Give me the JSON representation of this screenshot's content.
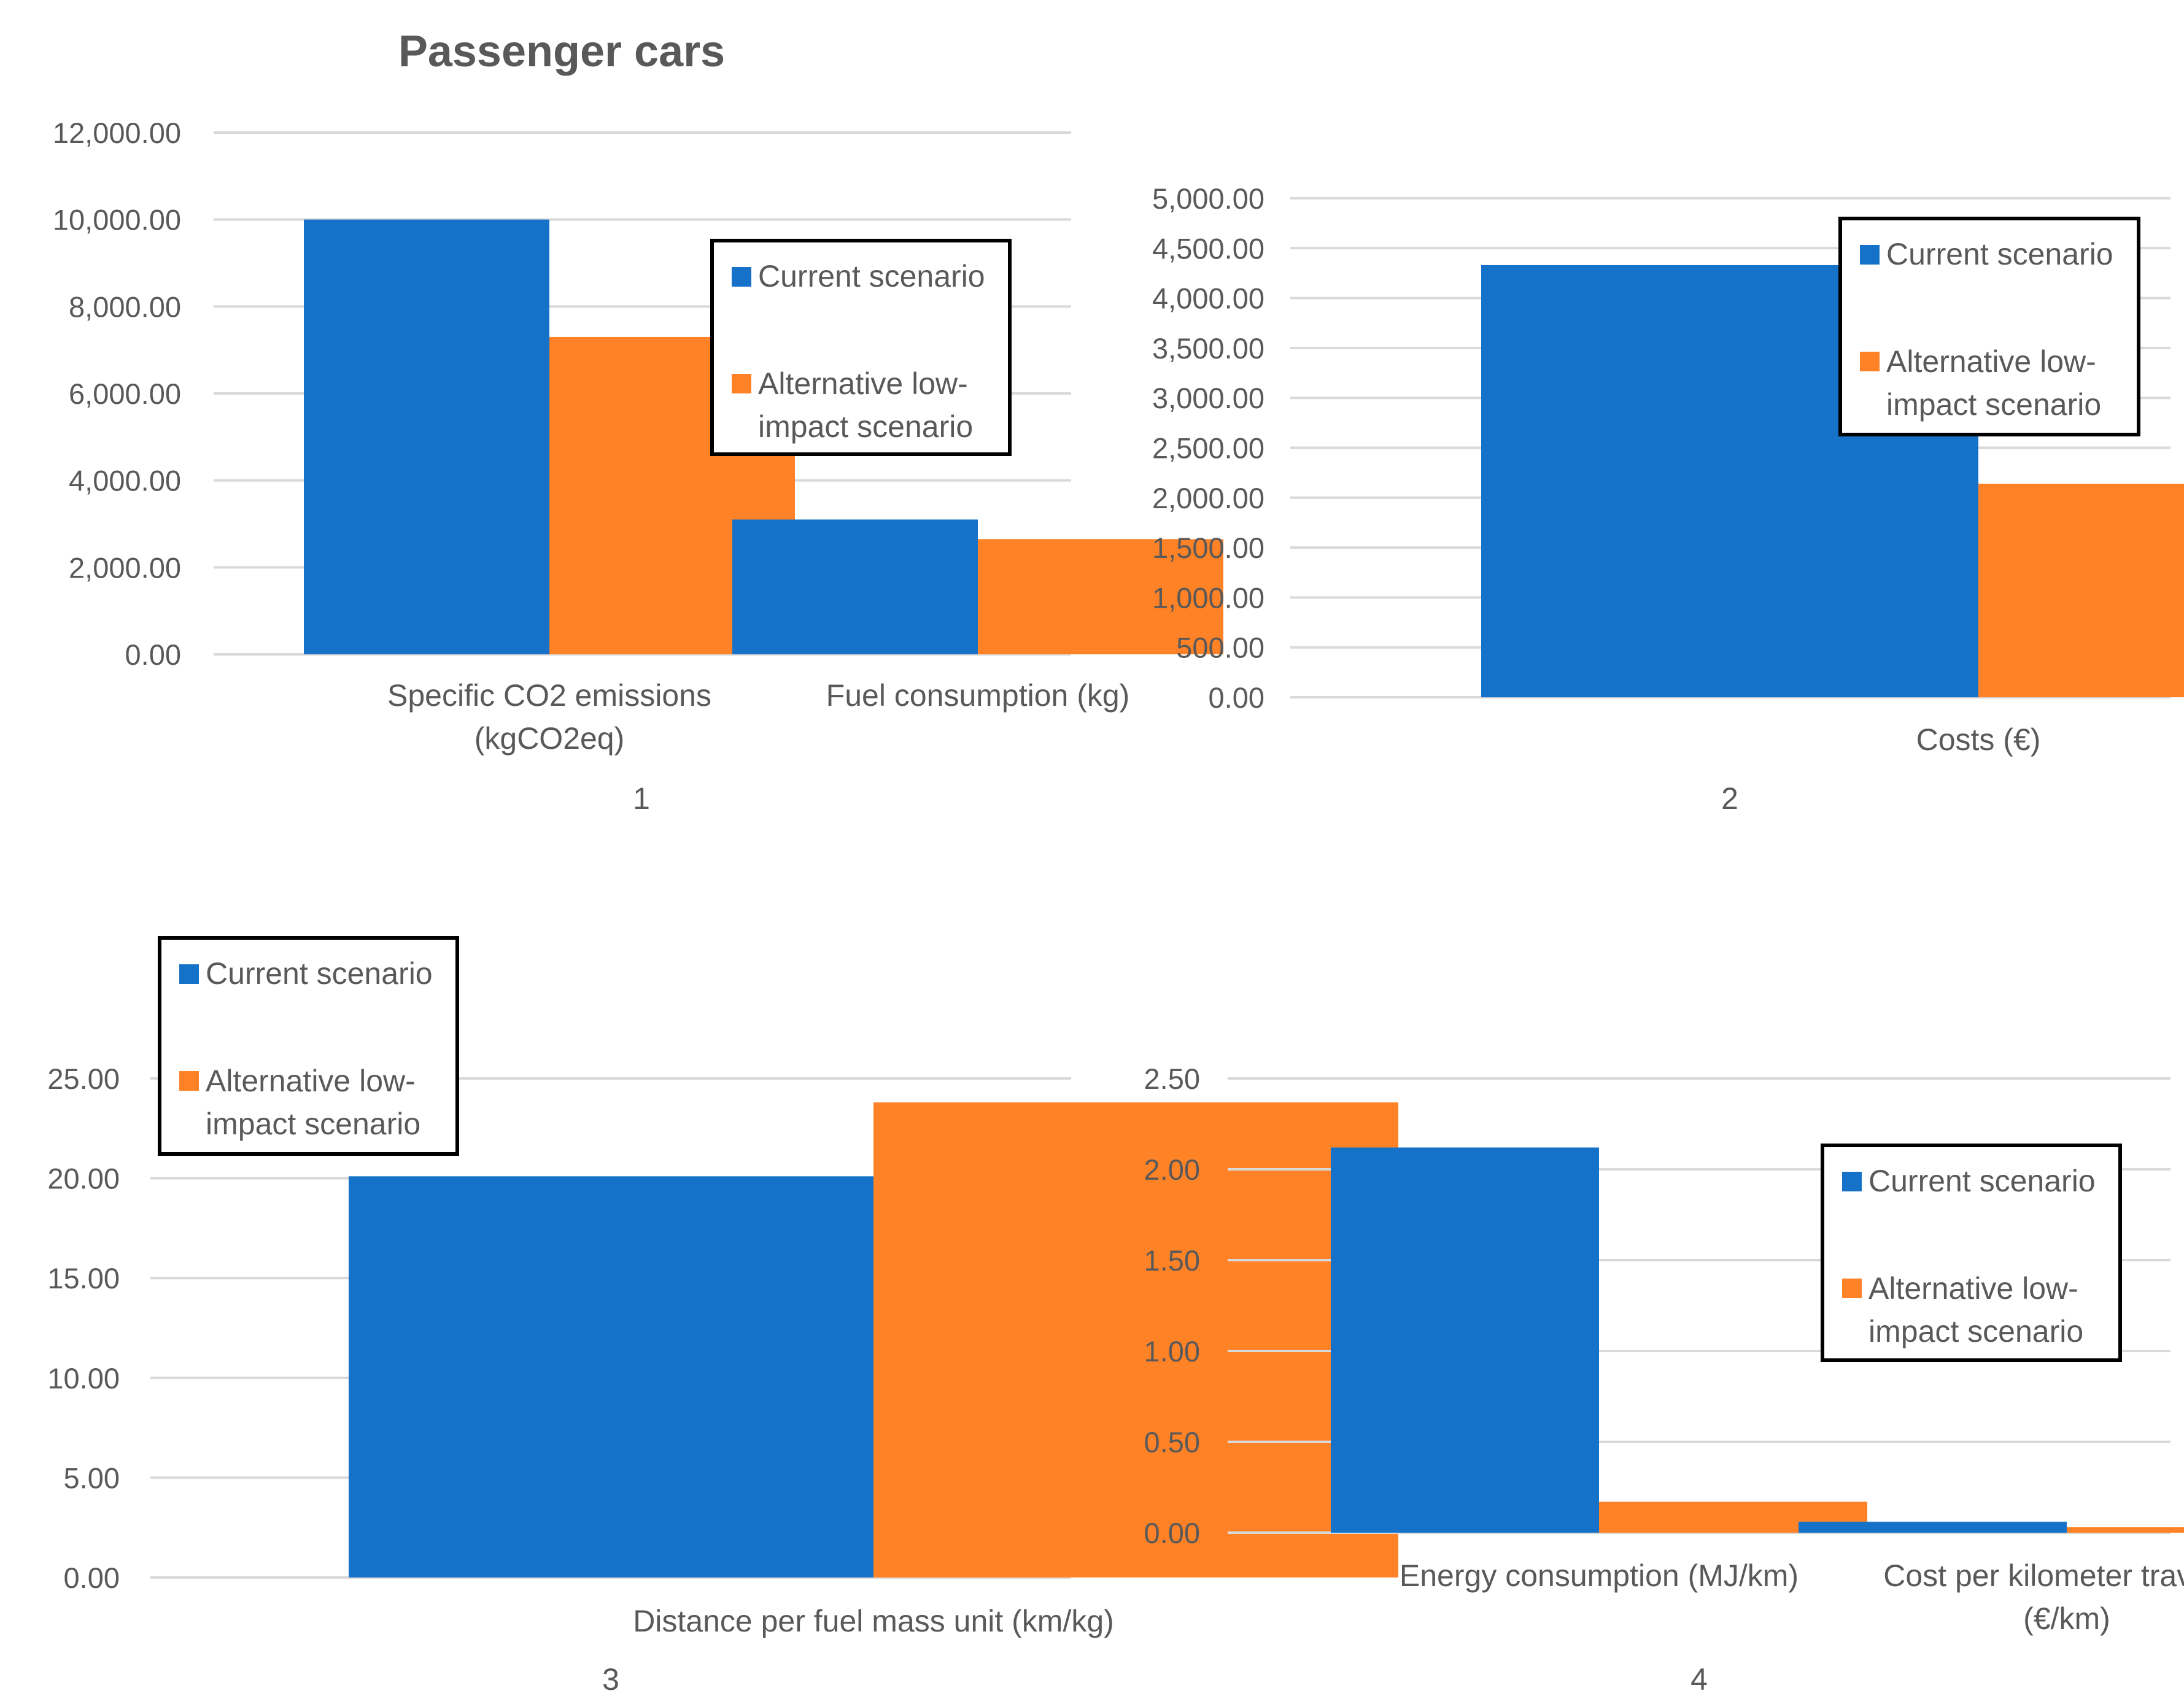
{
  "figure": {
    "title": "Passenger cars"
  },
  "series_names": [
    "Current scenario",
    "Alternative low-impact scenario"
  ],
  "legend": {
    "current": "Current scenario",
    "alternative_line1": "Alternative low-",
    "alternative_line2": "impact scenario"
  },
  "colors": {
    "current": "#1672C8",
    "alternative": "#FF8227",
    "grid": "#D9D9D9",
    "text": "#595959"
  },
  "chart_data": [
    {
      "type": "bar",
      "panel_label": "1",
      "categories": [
        "Specific CO2 emissions (kgCO2eq)",
        "Fuel consumption (kg)"
      ],
      "category_lines": [
        [
          "Specific CO2 emissions",
          "(kgCO2eq)"
        ],
        [
          "Fuel consumption (kg)"
        ]
      ],
      "series": [
        {
          "name": "Current scenario",
          "values": [
            10000,
            3100
          ]
        },
        {
          "name": "Alternative low-impact scenario",
          "values": [
            7300,
            2650
          ]
        }
      ],
      "ylim": [
        0,
        12000
      ],
      "yticks": [
        "0.00",
        "2,000.00",
        "4,000.00",
        "6,000.00",
        "8,000.00",
        "10,000.00",
        "12,000.00"
      ],
      "legend_position": "top-right",
      "grid": true
    },
    {
      "type": "bar",
      "panel_label": "2",
      "categories": [
        "Costs (€)"
      ],
      "category_lines": [
        [
          "Costs (€)"
        ]
      ],
      "series": [
        {
          "name": "Current scenario",
          "values": [
            4330
          ]
        },
        {
          "name": "Alternative low-impact scenario",
          "values": [
            2140
          ]
        }
      ],
      "ylim": [
        0,
        5000
      ],
      "yticks": [
        "0.00",
        "500.00",
        "1,000.00",
        "1,500.00",
        "2,000.00",
        "2,500.00",
        "3,000.00",
        "3,500.00",
        "4,000.00",
        "4,500.00",
        "5,000.00"
      ],
      "legend_position": "top-right",
      "grid": true
    },
    {
      "type": "bar",
      "panel_label": "3",
      "categories": [
        "Distance per fuel mass unit (km/kg)"
      ],
      "category_lines": [
        [
          "Distance per fuel mass unit (km/kg)"
        ]
      ],
      "series": [
        {
          "name": "Current scenario",
          "values": [
            20.1
          ]
        },
        {
          "name": "Alternative low-impact scenario",
          "values": [
            23.8
          ]
        }
      ],
      "ylim": [
        0,
        25
      ],
      "yticks": [
        "0.00",
        "5.00",
        "10.00",
        "15.00",
        "20.00",
        "25.00"
      ],
      "legend_position": "top-left",
      "grid": true
    },
    {
      "type": "bar",
      "panel_label": "4",
      "categories": [
        "Energy consumption (MJ/km)",
        "Cost per kilometer traveled (€/km)"
      ],
      "category_lines": [
        [
          "Energy consumption (MJ/km)"
        ],
        [
          "Cost per kilometer traveled",
          "(€/km)"
        ]
      ],
      "series": [
        {
          "name": "Current scenario",
          "values": [
            2.12,
            0.06
          ]
        },
        {
          "name": "Alternative low-impact scenario",
          "values": [
            0.17,
            0.03
          ]
        }
      ],
      "ylim": [
        0,
        2.5
      ],
      "yticks": [
        "0.00",
        "0.50",
        "1.00",
        "1.50",
        "2.00",
        "2.50"
      ],
      "legend_position": "right",
      "grid": true
    }
  ]
}
